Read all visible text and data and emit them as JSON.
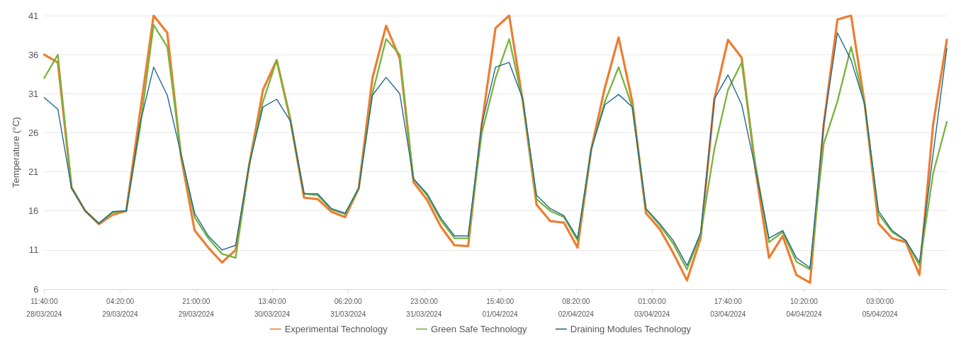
{
  "chart_data": {
    "type": "line",
    "ylabel": "Temperature (°C)",
    "x": [
      "2024-03-28T11:40",
      "2024-03-28T14:40",
      "2024-03-28T17:40",
      "2024-03-28T20:40",
      "2024-03-28T23:40",
      "2024-03-29T02:40",
      "2024-03-29T05:40",
      "2024-03-29T08:40",
      "2024-03-29T11:40",
      "2024-03-29T14:40",
      "2024-03-29T17:40",
      "2024-03-29T20:40",
      "2024-03-29T23:40",
      "2024-03-30T02:40",
      "2024-03-30T05:40",
      "2024-03-30T08:40",
      "2024-03-30T11:40",
      "2024-03-30T14:40",
      "2024-03-30T17:40",
      "2024-03-30T20:40",
      "2024-03-30T23:40",
      "2024-03-31T02:40",
      "2024-03-31T05:40",
      "2024-03-31T08:40",
      "2024-03-31T11:40",
      "2024-03-31T14:40",
      "2024-03-31T17:40",
      "2024-03-31T20:40",
      "2024-03-31T23:40",
      "2024-04-01T02:40",
      "2024-04-01T05:40",
      "2024-04-01T08:40",
      "2024-04-01T11:40",
      "2024-04-01T14:40",
      "2024-04-01T17:40",
      "2024-04-01T20:40",
      "2024-04-01T23:40",
      "2024-04-02T02:40",
      "2024-04-02T05:40",
      "2024-04-02T08:40",
      "2024-04-02T11:40",
      "2024-04-02T14:40",
      "2024-04-02T17:40",
      "2024-04-02T20:40",
      "2024-04-02T23:40",
      "2024-04-03T02:40",
      "2024-04-03T05:40",
      "2024-04-03T08:40",
      "2024-04-03T11:40",
      "2024-04-03T14:40",
      "2024-04-03T17:40",
      "2024-04-03T20:40",
      "2024-04-03T23:40",
      "2024-04-04T02:40",
      "2024-04-04T05:40",
      "2024-04-04T08:40",
      "2024-04-04T11:40",
      "2024-04-04T14:40",
      "2024-04-04T17:40",
      "2024-04-04T20:40",
      "2024-04-04T23:40",
      "2024-04-05T02:40",
      "2024-04-05T05:40",
      "2024-04-05T08:40",
      "2024-04-05T11:40",
      "2024-04-05T14:40",
      "2024-04-05T17:40"
    ],
    "series": [
      {
        "name": "Experimental Technology",
        "color": "#ed7d31",
        "values": [
          36,
          35,
          19,
          16,
          14.3,
          15.5,
          16,
          28.5,
          41,
          38.8,
          23,
          13.5,
          11.3,
          9.4,
          11,
          22,
          31.5,
          35.3,
          27.7,
          17.7,
          17.5,
          15.9,
          15.2,
          18.9,
          33,
          39.7,
          35.5,
          19.7,
          17.4,
          14,
          11.6,
          11.5,
          27.1,
          39.4,
          41,
          30,
          16.8,
          14.7,
          14.5,
          11.3,
          23.9,
          31.8,
          38.2,
          30,
          15.7,
          13.7,
          10.6,
          7.1,
          12.5,
          30.3,
          37.9,
          35.6,
          21.4,
          10,
          12.8,
          7.8,
          6.8,
          27.1,
          40.5,
          41,
          29.6,
          14.4,
          12.5,
          12,
          7.8,
          27.1,
          37.9
        ]
      },
      {
        "name": "Green Safe Technology",
        "color": "#77b33c",
        "values": [
          33,
          36,
          19,
          16,
          14.4,
          15.8,
          16,
          26.5,
          39.8,
          37,
          23.3,
          15.2,
          12.5,
          10.5,
          10,
          22,
          30,
          35.3,
          27.7,
          18.2,
          18,
          16.2,
          15.6,
          18.9,
          31,
          38,
          36,
          20.1,
          18,
          14.8,
          12.5,
          12.5,
          26,
          33,
          38,
          30,
          17.5,
          16,
          15.2,
          12.2,
          23.9,
          30,
          34.4,
          29.3,
          16.2,
          14.2,
          11.8,
          8.5,
          13,
          23.9,
          31.5,
          35,
          22,
          12,
          13.3,
          9.5,
          8.5,
          24.6,
          30,
          37,
          29.6,
          15.6,
          13.3,
          12.2,
          9,
          20.8,
          27.4
        ]
      },
      {
        "name": "Draining Modules Technology",
        "color": "#22668f",
        "values": [
          30.5,
          29,
          18.9,
          16,
          14.4,
          15.9,
          16,
          27.1,
          34.4,
          30.8,
          23.3,
          15.7,
          12.8,
          11,
          11.6,
          22,
          29.3,
          30.3,
          27.5,
          18.2,
          18.2,
          16.3,
          15.7,
          18.9,
          30.8,
          33.1,
          31,
          20.1,
          18.2,
          15.1,
          12.8,
          12.8,
          27.1,
          34.4,
          35,
          30.3,
          18,
          16.3,
          15.4,
          12.5,
          23.9,
          29.6,
          30.9,
          29.3,
          16.3,
          14.4,
          12.2,
          9,
          13.2,
          30.3,
          33.4,
          29.6,
          21.4,
          12.5,
          13.5,
          10,
          8.7,
          27.1,
          38.8,
          35.3,
          29.6,
          16,
          13.5,
          12.2,
          9.4,
          23.3,
          36.8
        ]
      }
    ],
    "xlim": [
      "2024-03-28T11:40",
      "2024-04-05T17:40"
    ],
    "xticks": [
      {
        "value": "2024-03-28T11:40",
        "label": "11:40:00\n28/03/2024"
      },
      {
        "value": "2024-03-29T04:20",
        "label": "04:20:00\n29/03/2024"
      },
      {
        "value": "2024-03-29T21:00",
        "label": "21:00:00\n29/03/2024"
      },
      {
        "value": "2024-03-30T13:40",
        "label": "13:40:00\n30/03/2024"
      },
      {
        "value": "2024-03-31T06:20",
        "label": "06:20:00\n31/03/2024"
      },
      {
        "value": "2024-03-31T23:00",
        "label": "23:00:00\n31/03/2024"
      },
      {
        "value": "2024-04-01T15:40",
        "label": "15:40:00\n01/04/2024"
      },
      {
        "value": "2024-04-02T08:20",
        "label": "08:20:00\n02/04/2024"
      },
      {
        "value": "2024-04-03T01:00",
        "label": "01:00:00\n03/04/2024"
      },
      {
        "value": "2024-04-03T17:40",
        "label": "17:40:00\n03/04/2024"
      },
      {
        "value": "2024-04-04T10:20",
        "label": "10:20:00\n04/04/2024"
      },
      {
        "value": "2024-04-05T03:00",
        "label": "03:00:00\n05/04/2024"
      }
    ],
    "ylim": [
      6,
      41
    ],
    "yticks": [
      6,
      11,
      16,
      21,
      26,
      31,
      36,
      41
    ],
    "grid": "y",
    "legend": "bottom",
    "marker": "none",
    "line_style": "solid"
  }
}
